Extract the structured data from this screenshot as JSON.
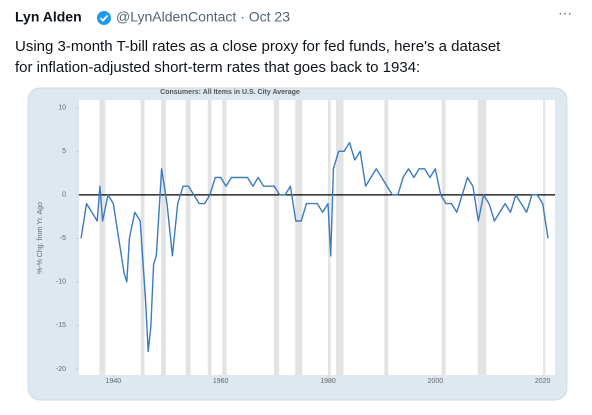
{
  "tweet": {
    "name": "Lyn Alden",
    "handle_date": "@LynAldenContact · Oct 23",
    "text_lines": [
      "Using 3-month T-bill rates as a close proxy for fed funds, here's a dataset",
      "for inflation-adjusted short-term rates that goes back to 1934:"
    ]
  },
  "chart_data": {
    "type": "line",
    "title": "Consumers: All Items in U.S. City Average",
    "y_label": "%-% Chg. from Yr. Ago",
    "x": [
      1934,
      1935,
      1936,
      1937,
      1937.5,
      1938,
      1939,
      1940,
      1941,
      1942,
      1942.5,
      1943,
      1944,
      1945,
      1946,
      1946.5,
      1947,
      1947.5,
      1948,
      1948.5,
      1949,
      1950,
      1951,
      1952,
      1953,
      1954,
      1955,
      1956,
      1957,
      1958,
      1959,
      1960,
      1961,
      1962,
      1963,
      1964,
      1965,
      1966,
      1967,
      1968,
      1969,
      1970,
      1971,
      1972,
      1973,
      1974,
      1975,
      1976,
      1977,
      1978,
      1979,
      1980,
      1980.5,
      1981,
      1982,
      1983,
      1984,
      1985,
      1986,
      1987,
      1988,
      1989,
      1990,
      1991,
      1992,
      1993,
      1994,
      1995,
      1996,
      1997,
      1998,
      1999,
      2000,
      2001,
      2002,
      2003,
      2004,
      2005,
      2006,
      2007,
      2008,
      2009,
      2010,
      2011,
      2012,
      2013,
      2014,
      2015,
      2016,
      2017,
      2018,
      2019,
      2020,
      2021
    ],
    "values": [
      -5,
      -1,
      -2,
      -3,
      1,
      -3,
      0,
      -1,
      -5,
      -9,
      -10,
      -5,
      -2,
      -3,
      -12,
      -18,
      -15,
      -8,
      -7,
      -2,
      3,
      -1,
      -7,
      -1,
      1,
      1,
      0,
      -1,
      -1,
      0,
      2,
      2,
      1,
      2,
      2,
      2,
      2,
      1,
      2,
      1,
      1,
      1,
      0,
      0,
      1,
      -3,
      -3,
      -1,
      -1,
      -1,
      -2,
      -1,
      -7,
      3,
      5,
      5,
      6,
      4,
      5,
      1,
      2,
      3,
      2,
      1,
      0,
      0,
      2,
      3,
      2,
      3,
      3,
      2,
      3,
      0,
      -1,
      -1,
      -2,
      0,
      2,
      1,
      -3,
      0,
      -1,
      -3,
      -2,
      -1,
      -2,
      0,
      -1,
      -2,
      0,
      0,
      -1,
      -5
    ],
    "color": "#3b7bbf",
    "recessions": [
      [
        1937.4,
        1938.5
      ],
      [
        1945.1,
        1945.8
      ],
      [
        1948.9,
        1949.8
      ],
      [
        1953.5,
        1954.4
      ],
      [
        1957.6,
        1958.3
      ],
      [
        1960.3,
        1961.1
      ],
      [
        1969.9,
        1970.9
      ],
      [
        1973.9,
        1975.2
      ],
      [
        1980.0,
        1980.5
      ],
      [
        1981.5,
        1982.9
      ],
      [
        1990.5,
        1991.2
      ],
      [
        2001.2,
        2001.9
      ],
      [
        2007.9,
        2009.5
      ],
      [
        2020.1,
        2020.4
      ]
    ],
    "xlim": [
      1933.6,
      2022.3
    ],
    "ylim": [
      -20.7,
      10.9
    ],
    "xticks": [
      1940,
      1960,
      1980,
      2000,
      2020
    ],
    "yticks": [
      -20,
      -15,
      -10,
      -5,
      0,
      5,
      10
    ]
  }
}
